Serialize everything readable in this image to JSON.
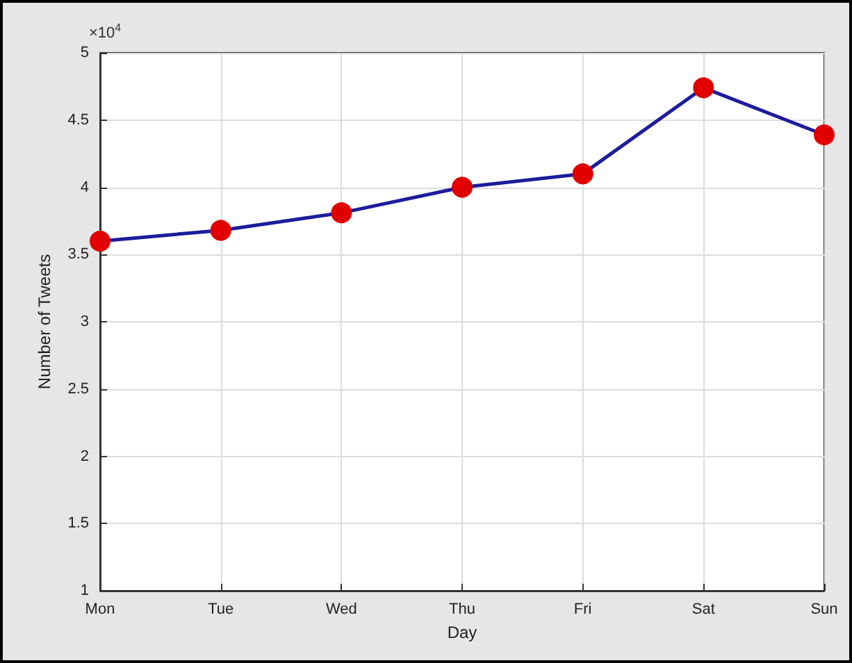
{
  "chart_data": {
    "type": "line",
    "xlabel": "Day",
    "ylabel": "Number of Tweets",
    "categories": [
      "Mon",
      "Tue",
      "Wed",
      "Thu",
      "Fri",
      "Sat",
      "Sun"
    ],
    "series": [
      {
        "color": "#1c1c9c",
        "colors": [
          "#e00000",
          "#e00000",
          "#e00000",
          "#e00000",
          "#e00000",
          "#e00000",
          "#e00000"
        ],
        "values": [
          3.6,
          3.68,
          3.81,
          4.0,
          4.1,
          4.74,
          4.39
        ]
      }
    ],
    "ylim": [
      1,
      5
    ],
    "yticks": [
      1,
      1.5,
      2,
      2.5,
      3,
      3.5,
      4,
      4.5,
      5
    ],
    "annotations": [
      "×10$^{4}$"
    ],
    "grid": true,
    "marker": "circle",
    "line_style": "solid"
  }
}
